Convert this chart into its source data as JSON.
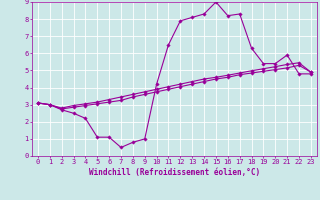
{
  "xlabel": "Windchill (Refroidissement éolien,°C)",
  "bg_color": "#cce8e8",
  "line_color": "#990099",
  "grid_color": "#ffffff",
  "xlim": [
    -0.5,
    23.5
  ],
  "ylim": [
    0,
    9
  ],
  "xticks": [
    0,
    1,
    2,
    3,
    4,
    5,
    6,
    7,
    8,
    9,
    10,
    11,
    12,
    13,
    14,
    15,
    16,
    17,
    18,
    19,
    20,
    21,
    22,
    23
  ],
  "yticks": [
    0,
    1,
    2,
    3,
    4,
    5,
    6,
    7,
    8,
    9
  ],
  "line1_x": [
    0,
    1,
    2,
    3,
    4,
    5,
    6,
    7,
    8,
    9,
    10,
    11,
    12,
    13,
    14,
    15,
    16,
    17,
    18,
    19,
    20,
    21,
    22,
    23
  ],
  "line1_y": [
    3.1,
    3.0,
    2.7,
    2.5,
    2.2,
    1.1,
    1.1,
    0.5,
    0.8,
    1.0,
    4.2,
    6.5,
    7.9,
    8.1,
    8.3,
    9.0,
    8.2,
    8.3,
    6.3,
    5.4,
    5.4,
    5.9,
    4.8,
    4.8
  ],
  "line2_x": [
    0,
    1,
    2,
    3,
    4,
    5,
    6,
    7,
    8,
    9,
    10,
    11,
    12,
    13,
    14,
    15,
    16,
    17,
    18,
    19,
    20,
    21,
    22,
    23
  ],
  "line2_y": [
    3.1,
    3.0,
    2.75,
    2.85,
    2.95,
    3.05,
    3.15,
    3.25,
    3.45,
    3.6,
    3.75,
    3.9,
    4.05,
    4.2,
    4.35,
    4.5,
    4.6,
    4.75,
    4.85,
    4.95,
    5.05,
    5.15,
    5.3,
    4.9
  ],
  "line3_x": [
    0,
    1,
    2,
    3,
    4,
    5,
    6,
    7,
    8,
    9,
    10,
    11,
    12,
    13,
    14,
    15,
    16,
    17,
    18,
    19,
    20,
    21,
    22,
    23
  ],
  "line3_y": [
    3.1,
    3.0,
    2.8,
    2.95,
    3.05,
    3.15,
    3.3,
    3.45,
    3.6,
    3.75,
    3.9,
    4.05,
    4.2,
    4.35,
    4.5,
    4.6,
    4.72,
    4.85,
    4.98,
    5.1,
    5.22,
    5.35,
    5.45,
    4.9
  ],
  "marker": "D",
  "marker_size": 1.8,
  "linewidth": 0.8,
  "xlabel_fontsize": 5.5,
  "tick_fontsize": 5.0
}
